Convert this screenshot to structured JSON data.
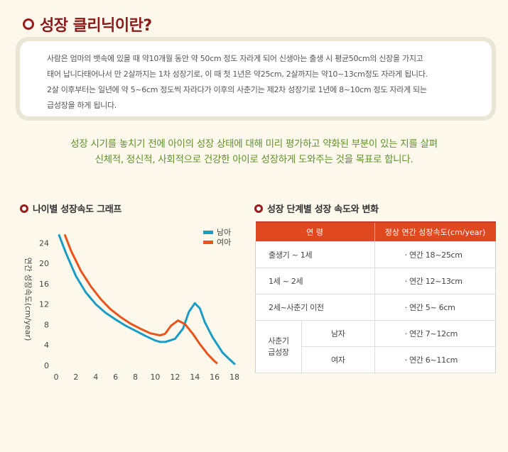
{
  "header": {
    "title": "성장 클리닉이란?"
  },
  "intro": {
    "lines": [
      "사람은 엄마의 뱃속에 있을 때 약10개월 동안 약 50cm 정도 자라게 되어 신생아는 출생 시 평균50cm의 신장을 가지고",
      "태어 납니다태어나서 만 2살까지는 1차 성장기로, 이 때 첫 1년은 약25cm, 2살까지는 약10~13cm정도 자라게 됩니다.",
      "2살 이후부터는 일년에 약 5~6cm 정도씩 자라다가 이후의 사춘기는 제2차 성장기로 1년에 8~10cm 정도 자라게 되는",
      "급성장을 하게 됩니다."
    ]
  },
  "mission": {
    "line1": "성장 시기를 놓치기 전에 아이의 성장 상태에 대해 미리 평가하고 약화된 부분이 있는 지를 살펴",
    "line2": "신체적, 정신적, 사회적으로 건강한 아이로 성장하게 도와주는 것을 목표로 합니다."
  },
  "chart_section": {
    "title": "나이별 성장속도 그래프"
  },
  "table_section": {
    "title": "성장 단계별 성장 속도와 변화"
  },
  "colors": {
    "boy": "#1b9cc4",
    "girl": "#e9541c",
    "accent": "#9b1c1c"
  },
  "chart_data": {
    "type": "line",
    "title": "",
    "xlabel": "",
    "ylabel": "연간 성장속도(cm/year)",
    "xlim": [
      0,
      18
    ],
    "ylim": [
      0,
      26
    ],
    "xticks": [
      0,
      2,
      4,
      6,
      8,
      10,
      12,
      14,
      16,
      18
    ],
    "yticks": [
      0,
      4,
      8,
      12,
      16,
      20,
      24
    ],
    "legend": "top-right",
    "grid": false,
    "series": [
      {
        "name": "남아",
        "color": "#1b9cc4",
        "points": [
          [
            0.3,
            25.5
          ],
          [
            1,
            22
          ],
          [
            2,
            17.5
          ],
          [
            3,
            14.3
          ],
          [
            4,
            12
          ],
          [
            5,
            10.3
          ],
          [
            6,
            9
          ],
          [
            7,
            7.8
          ],
          [
            8,
            6.8
          ],
          [
            9,
            5.8
          ],
          [
            10,
            4.9
          ],
          [
            10.5,
            4.6
          ],
          [
            11,
            4.6
          ],
          [
            12,
            5.2
          ],
          [
            12.8,
            7.2
          ],
          [
            13.4,
            10.5
          ],
          [
            14,
            12.2
          ],
          [
            14.5,
            11.2
          ],
          [
            15,
            8.5
          ],
          [
            15.8,
            5.5
          ],
          [
            16.8,
            2.5
          ],
          [
            17.5,
            1.2
          ],
          [
            18,
            0.3
          ]
        ]
      },
      {
        "name": "여아",
        "color": "#e9541c",
        "points": [
          [
            0.9,
            25.5
          ],
          [
            1.5,
            22.5
          ],
          [
            2.5,
            18.5
          ],
          [
            3.5,
            15.5
          ],
          [
            4.5,
            13
          ],
          [
            5.5,
            11
          ],
          [
            6.5,
            9.5
          ],
          [
            7.5,
            8.2
          ],
          [
            8.5,
            7.2
          ],
          [
            9.5,
            6.3
          ],
          [
            10.5,
            5.9
          ],
          [
            11,
            6.2
          ],
          [
            11.6,
            7.8
          ],
          [
            12.3,
            8.8
          ],
          [
            13,
            8.1
          ],
          [
            13.8,
            6.2
          ],
          [
            14.5,
            4.2
          ],
          [
            15.3,
            2.2
          ],
          [
            16,
            0.8
          ],
          [
            16.2,
            0.5
          ]
        ]
      }
    ]
  },
  "growth_table": {
    "headers": [
      "연 령",
      "정상 연간 성장속도(cm/year)"
    ],
    "rows": [
      {
        "stage": "출생기 ~ 1세",
        "rate": "· 연간 18~25cm"
      },
      {
        "stage": "1세 ~ 2세",
        "rate": "· 연간 12~13cm"
      },
      {
        "stage": "2세~사춘기 이전",
        "rate": "· 연간    5~  6cm"
      }
    ],
    "puberty": {
      "label_line1": "사춘기",
      "label_line2": "급성장",
      "boy_label": "남자",
      "boy_rate": "· 연간    7~12cm",
      "girl_label": "여자",
      "girl_rate": "· 연간    6~11cm"
    }
  }
}
